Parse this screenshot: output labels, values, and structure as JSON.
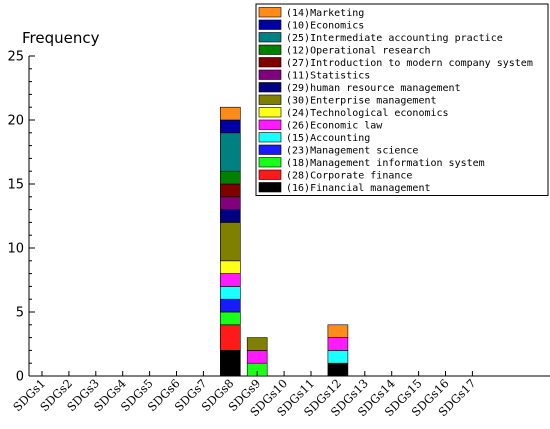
{
  "chart_data": {
    "type": "bar",
    "stacked": true,
    "ylabel": "Frequency",
    "xlabel": "",
    "ylim": [
      0,
      25
    ],
    "yticks": [
      0,
      5,
      10,
      15,
      20,
      25
    ],
    "grid": false,
    "legend_position": "top-right",
    "categories": [
      "SDGs1",
      "SDGs2",
      "SDGs3",
      "SDGs4",
      "SDGs5",
      "SDGs6",
      "SDGs7",
      "SDGs8",
      "SDGs9",
      "SDGs10",
      "SDGs11",
      "SDGs12",
      "SDGs13",
      "SDGs14",
      "SDGs15",
      "SDGs16",
      "SDGs17"
    ],
    "series": [
      {
        "name": "(16)Financial management",
        "color": "#000000",
        "values": [
          0,
          0,
          0,
          0,
          0,
          0,
          0,
          2,
          0,
          0,
          0,
          1,
          0,
          0,
          0,
          0,
          0
        ]
      },
      {
        "name": "(28)Corporate finance",
        "color": "#ff1a1a",
        "values": [
          0,
          0,
          0,
          0,
          0,
          0,
          0,
          2,
          0,
          0,
          0,
          0,
          0,
          0,
          0,
          0,
          0
        ]
      },
      {
        "name": "(18)Management information system",
        "color": "#1aff1a",
        "values": [
          0,
          0,
          0,
          0,
          0,
          0,
          0,
          1,
          1,
          0,
          0,
          0,
          0,
          0,
          0,
          0,
          0
        ]
      },
      {
        "name": "(23)Management science",
        "color": "#1a1aff",
        "values": [
          0,
          0,
          0,
          0,
          0,
          0,
          0,
          1,
          0,
          0,
          0,
          0,
          0,
          0,
          0,
          0,
          0
        ]
      },
      {
        "name": "(15)Accounting",
        "color": "#1affff",
        "values": [
          0,
          0,
          0,
          0,
          0,
          0,
          0,
          1,
          0,
          0,
          0,
          1,
          0,
          0,
          0,
          0,
          0
        ]
      },
      {
        "name": "(26)Economic law",
        "color": "#ff1aff",
        "values": [
          0,
          0,
          0,
          0,
          0,
          0,
          0,
          1,
          1,
          0,
          0,
          1,
          0,
          0,
          0,
          0,
          0
        ]
      },
      {
        "name": "(24)Technological economics",
        "color": "#ffff1a",
        "values": [
          0,
          0,
          0,
          0,
          0,
          0,
          0,
          1,
          0,
          0,
          0,
          0,
          0,
          0,
          0,
          0,
          0
        ]
      },
      {
        "name": "(30)Enterprise management",
        "color": "#808000",
        "values": [
          0,
          0,
          0,
          0,
          0,
          0,
          0,
          3,
          1,
          0,
          0,
          0,
          0,
          0,
          0,
          0,
          0
        ]
      },
      {
        "name": "(29)human resource management",
        "color": "#000080",
        "values": [
          0,
          0,
          0,
          0,
          0,
          0,
          0,
          1,
          0,
          0,
          0,
          0,
          0,
          0,
          0,
          0,
          0
        ]
      },
      {
        "name": "(11)Statistics",
        "color": "#800080",
        "values": [
          0,
          0,
          0,
          0,
          0,
          0,
          0,
          1,
          0,
          0,
          0,
          0,
          0,
          0,
          0,
          0,
          0
        ]
      },
      {
        "name": "(27)Introduction to modern company system",
        "color": "#800000",
        "values": [
          0,
          0,
          0,
          0,
          0,
          0,
          0,
          1,
          0,
          0,
          0,
          0,
          0,
          0,
          0,
          0,
          0
        ]
      },
      {
        "name": "(12)Operational research",
        "color": "#008000",
        "values": [
          0,
          0,
          0,
          0,
          0,
          0,
          0,
          1,
          0,
          0,
          0,
          0,
          0,
          0,
          0,
          0,
          0
        ]
      },
      {
        "name": "(25)Intermediate accounting practice",
        "color": "#008080",
        "values": [
          0,
          0,
          0,
          0,
          0,
          0,
          0,
          3,
          0,
          0,
          0,
          0,
          0,
          0,
          0,
          0,
          0
        ]
      },
      {
        "name": "(10)Economics",
        "color": "#0000a0",
        "values": [
          0,
          0,
          0,
          0,
          0,
          0,
          0,
          1,
          0,
          0,
          0,
          0,
          0,
          0,
          0,
          0,
          0
        ]
      },
      {
        "name": "(14)Marketing",
        "color": "#ff8c1a",
        "values": [
          0,
          0,
          0,
          0,
          0,
          0,
          0,
          1,
          0,
          0,
          0,
          1,
          0,
          0,
          0,
          0,
          0
        ]
      }
    ]
  }
}
